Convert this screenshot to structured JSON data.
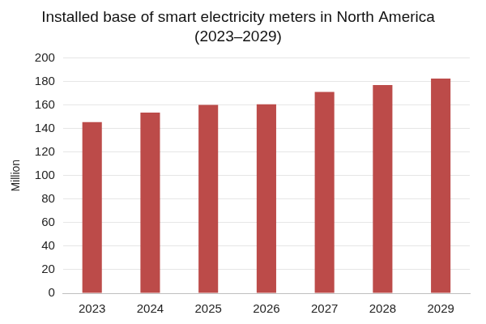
{
  "chart_data": {
    "type": "bar",
    "title": "Installed base of smart electricity meters in North America (2023–2029)",
    "y_label": "Million",
    "categories": [
      "2023",
      "2024",
      "2025",
      "2026",
      "2027",
      "2028",
      "2029"
    ],
    "values": [
      145.5,
      153.5,
      160,
      160.5,
      171,
      177,
      182.5
    ],
    "color": "#bc4b49",
    "ylim": [
      0,
      200
    ],
    "yticks": [
      0,
      20,
      40,
      60,
      80,
      100,
      120,
      140,
      160,
      180,
      200
    ],
    "grid": true
  }
}
